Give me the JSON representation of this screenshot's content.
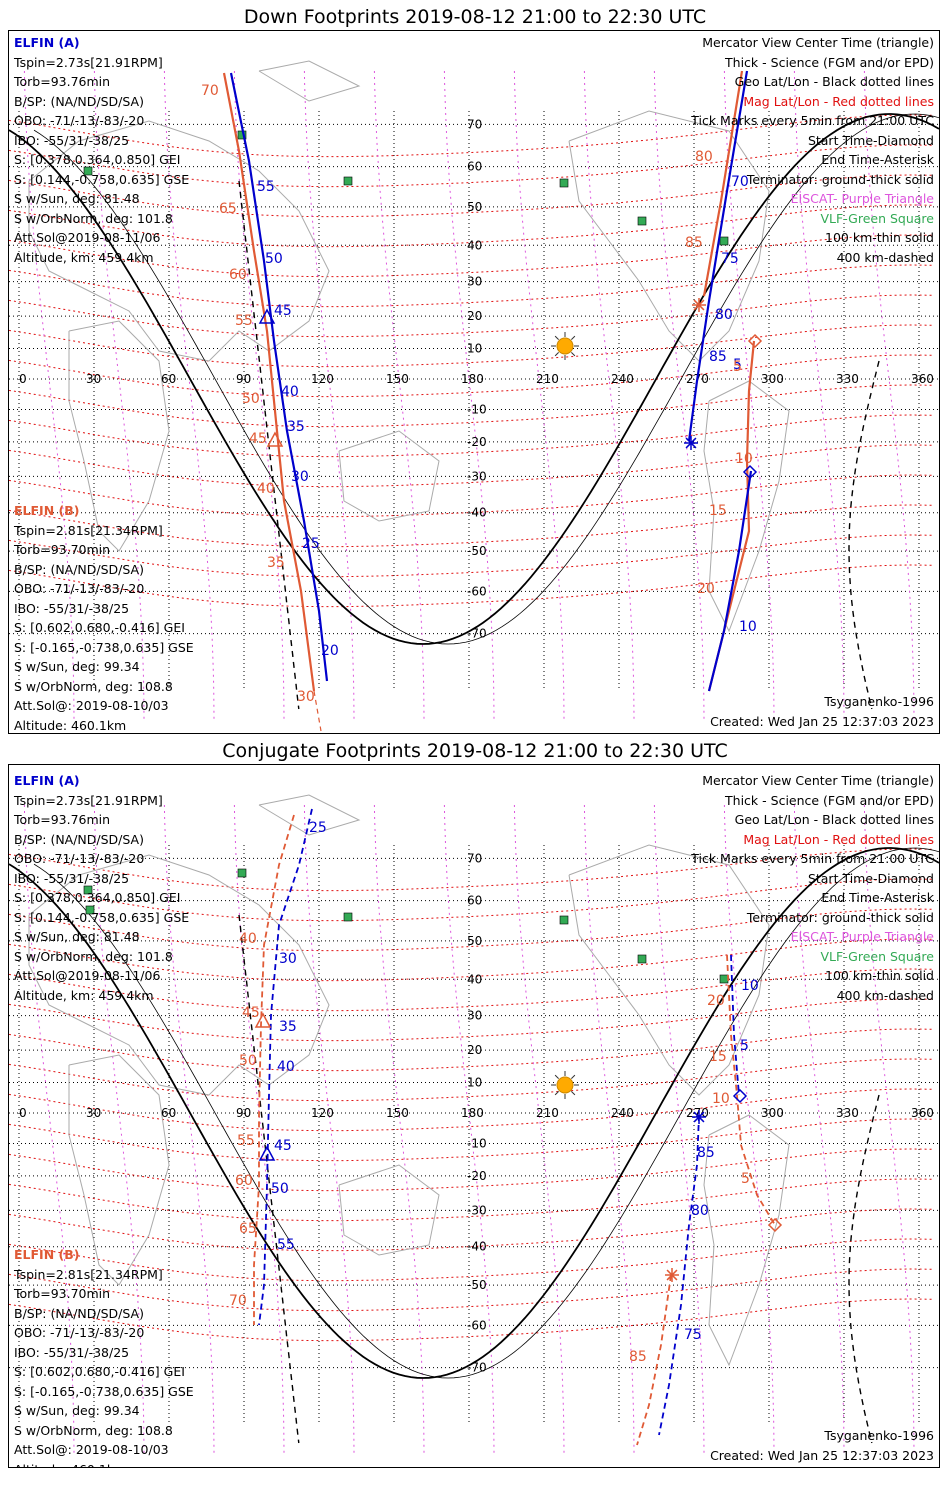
{
  "colors": {
    "sat_a": "#0000cc",
    "sat_b": "#e05a35",
    "mag_grid": "#e01010",
    "elfin_lines": "#dd55dd",
    "vlf": "#33aa55",
    "terminator": "#000000",
    "sun": "#ffaa00"
  },
  "legend": {
    "line1": "Mercator View Center Time (triangle)",
    "line2": "Thick - Science (FGM and/or EPD)",
    "line3": "Geo Lat/Lon - Black dotted lines",
    "line4": "Mag Lat/Lon - Red dotted lines",
    "line5": "Tick Marks every 5min from 21:00 UTC",
    "line6": "Start Time-Diamond",
    "line7": "End Time-Asterisk",
    "line8": "Terminator: ground-thick solid",
    "line9": "EISCAT- Purple Triangle",
    "line10": "VLF-Green Square",
    "line11": "100 km-thin solid",
    "line12": "400 km-dashed"
  },
  "elfin_a": {
    "name": "ELFIN (A)",
    "tspin": "Tspin=2.73s[21.91RPM]",
    "torb": "Torb=93.76min",
    "bsp": "B/SP: (NA/ND/SD/SA)",
    "obo": "OBO: -71/-13/-83/-20",
    "ibo": "IBO: -55/31/-38/25",
    "s_gei": "S: [0.378,0.364,0.850] GEI",
    "s_gse": "S: [0.144,-0.758,0.635] GSE",
    "s_sun": "S w/Sun, deg: 81.48",
    "s_orb": "S w/OrbNorm, deg: 101.8",
    "attsol": "Att.Sol@2019-08-11/06",
    "alt": "Altitude, km: 459.4km"
  },
  "elfin_b": {
    "name": "ELFIN (B)",
    "tspin": "Tspin=2.81s[21.34RPM]",
    "torb": "Torb=93.70min",
    "bsp": "B/SP: (NA/ND/SD/SA)",
    "obo": "OBO: -71/-13/-83/-20",
    "ibo": "IBO: -55/31/-38/25",
    "s_gei": "S: [0.602,0.680,-0.416] GEI",
    "s_gse": "S: [-0.165,-0.738,0.635] GSE",
    "s_sun": "S w/Sun, deg: 99.34",
    "s_orb": "S w/OrbNorm, deg: 108.8",
    "attsol": "Att.Sol@: 2019-08-10/03",
    "alt": "Altitude: 460.1km"
  },
  "model": "Tsyganenko-1996",
  "created": "Created: Wed Jan 25 12:37:03 2023",
  "axes": {
    "lon_ticks": [
      "0",
      "30",
      "60",
      "90",
      "120",
      "150",
      "180",
      "210",
      "240",
      "270",
      "300",
      "330",
      "360"
    ],
    "lat_ticks": [
      "70",
      "60",
      "50",
      "40",
      "30",
      "20",
      "10",
      "-10",
      "-20",
      "-30",
      "-40",
      "-50",
      "-60",
      "-70"
    ]
  },
  "panels": [
    {
      "title": "Down Footprints 2019-08-12 21:00 to 22:30 UTC",
      "a_labels": [
        "55",
        "50",
        "45",
        "40",
        "35",
        "30",
        "25",
        "20",
        "70",
        "75",
        "80",
        "85",
        "5",
        "10"
      ],
      "b_labels": [
        "70",
        "65",
        "60",
        "55",
        "50",
        "45",
        "40",
        "35",
        "30",
        "80",
        "85",
        "5",
        "10",
        "15",
        "20"
      ]
    },
    {
      "title": "Conjugate Footprints 2019-08-12 21:00 to 22:30 UTC",
      "a_labels": [
        "25",
        "30",
        "35",
        "40",
        "45",
        "50",
        "55",
        "10",
        "5",
        "85",
        "80",
        "75"
      ],
      "b_labels": [
        "40",
        "45",
        "50",
        "55",
        "60",
        "65",
        "70",
        "20",
        "15",
        "10",
        "5",
        "85"
      ]
    }
  ]
}
